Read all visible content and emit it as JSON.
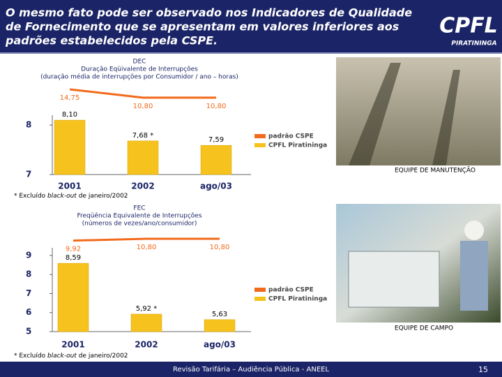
{
  "header": {
    "title_lines": [
      "O mesmo fato pode ser observado nos Indicadores de Qualidade",
      "de Fornecimento que se apresentam em valores inferiores aos",
      "padrões estabelecidos pela CSPE."
    ],
    "logo": "CPFL",
    "logo_sub": "PIRATININGA"
  },
  "chart_data": [
    {
      "type": "bar",
      "title_lines": [
        "DEC",
        "Duração Eqüivalente de Interrupções",
        "(duração média de interrupções por Consumidor / ano – horas)"
      ],
      "categories": [
        "2001",
        "2002",
        "ago/03"
      ],
      "series": [
        {
          "name": "padrão CSPE",
          "mark": "line",
          "color": "#f26a1b",
          "values": [
            14.75,
            10.8,
            10.8
          ],
          "value_labels": [
            "14,75",
            "10,80",
            "10,80"
          ]
        },
        {
          "name": "CPFL Piratininga",
          "mark": "bar",
          "color": "#f5c21e",
          "values": [
            8.1,
            7.68,
            7.59
          ],
          "value_labels": [
            "8,10",
            "7,68 *",
            "7,59"
          ]
        }
      ],
      "ylim": [
        7,
        8.2
      ],
      "yticks": [
        7,
        8
      ],
      "footnote": [
        "* Excluído ",
        "black-out",
        " de janeiro/2002"
      ]
    },
    {
      "type": "bar",
      "title_lines": [
        "FEC",
        "Freqüência Equivalente de Interrupções",
        "(números de vezes/ano/consumidor)"
      ],
      "categories": [
        "2001",
        "2002",
        "ago/03"
      ],
      "series": [
        {
          "name": "padrão CSPE",
          "mark": "line",
          "color": "#f26a1b",
          "values": [
            9.92,
            10.8,
            10.8
          ],
          "value_labels": [
            "9,92",
            "10,80",
            "10,80"
          ]
        },
        {
          "name": "CPFL Piratininga",
          "mark": "bar",
          "color": "#f5c21e",
          "values": [
            8.59,
            5.92,
            5.63
          ],
          "value_labels": [
            "8,59",
            "5,92 *",
            "5,63"
          ]
        }
      ],
      "ylim": [
        5,
        9.4
      ],
      "yticks": [
        5,
        6,
        7,
        8,
        9
      ],
      "footnote": [
        "* Excluído ",
        "black-out",
        " de janeiro/2002"
      ]
    }
  ],
  "photos": [
    {
      "caption": "EQUIPE DE MANUTENÇÃO"
    },
    {
      "caption": "EQUIPE DE CAMPO"
    }
  ],
  "footer": {
    "text": "Revisão Tarifária – Audiência Pública - ANEEL",
    "page": "15"
  }
}
